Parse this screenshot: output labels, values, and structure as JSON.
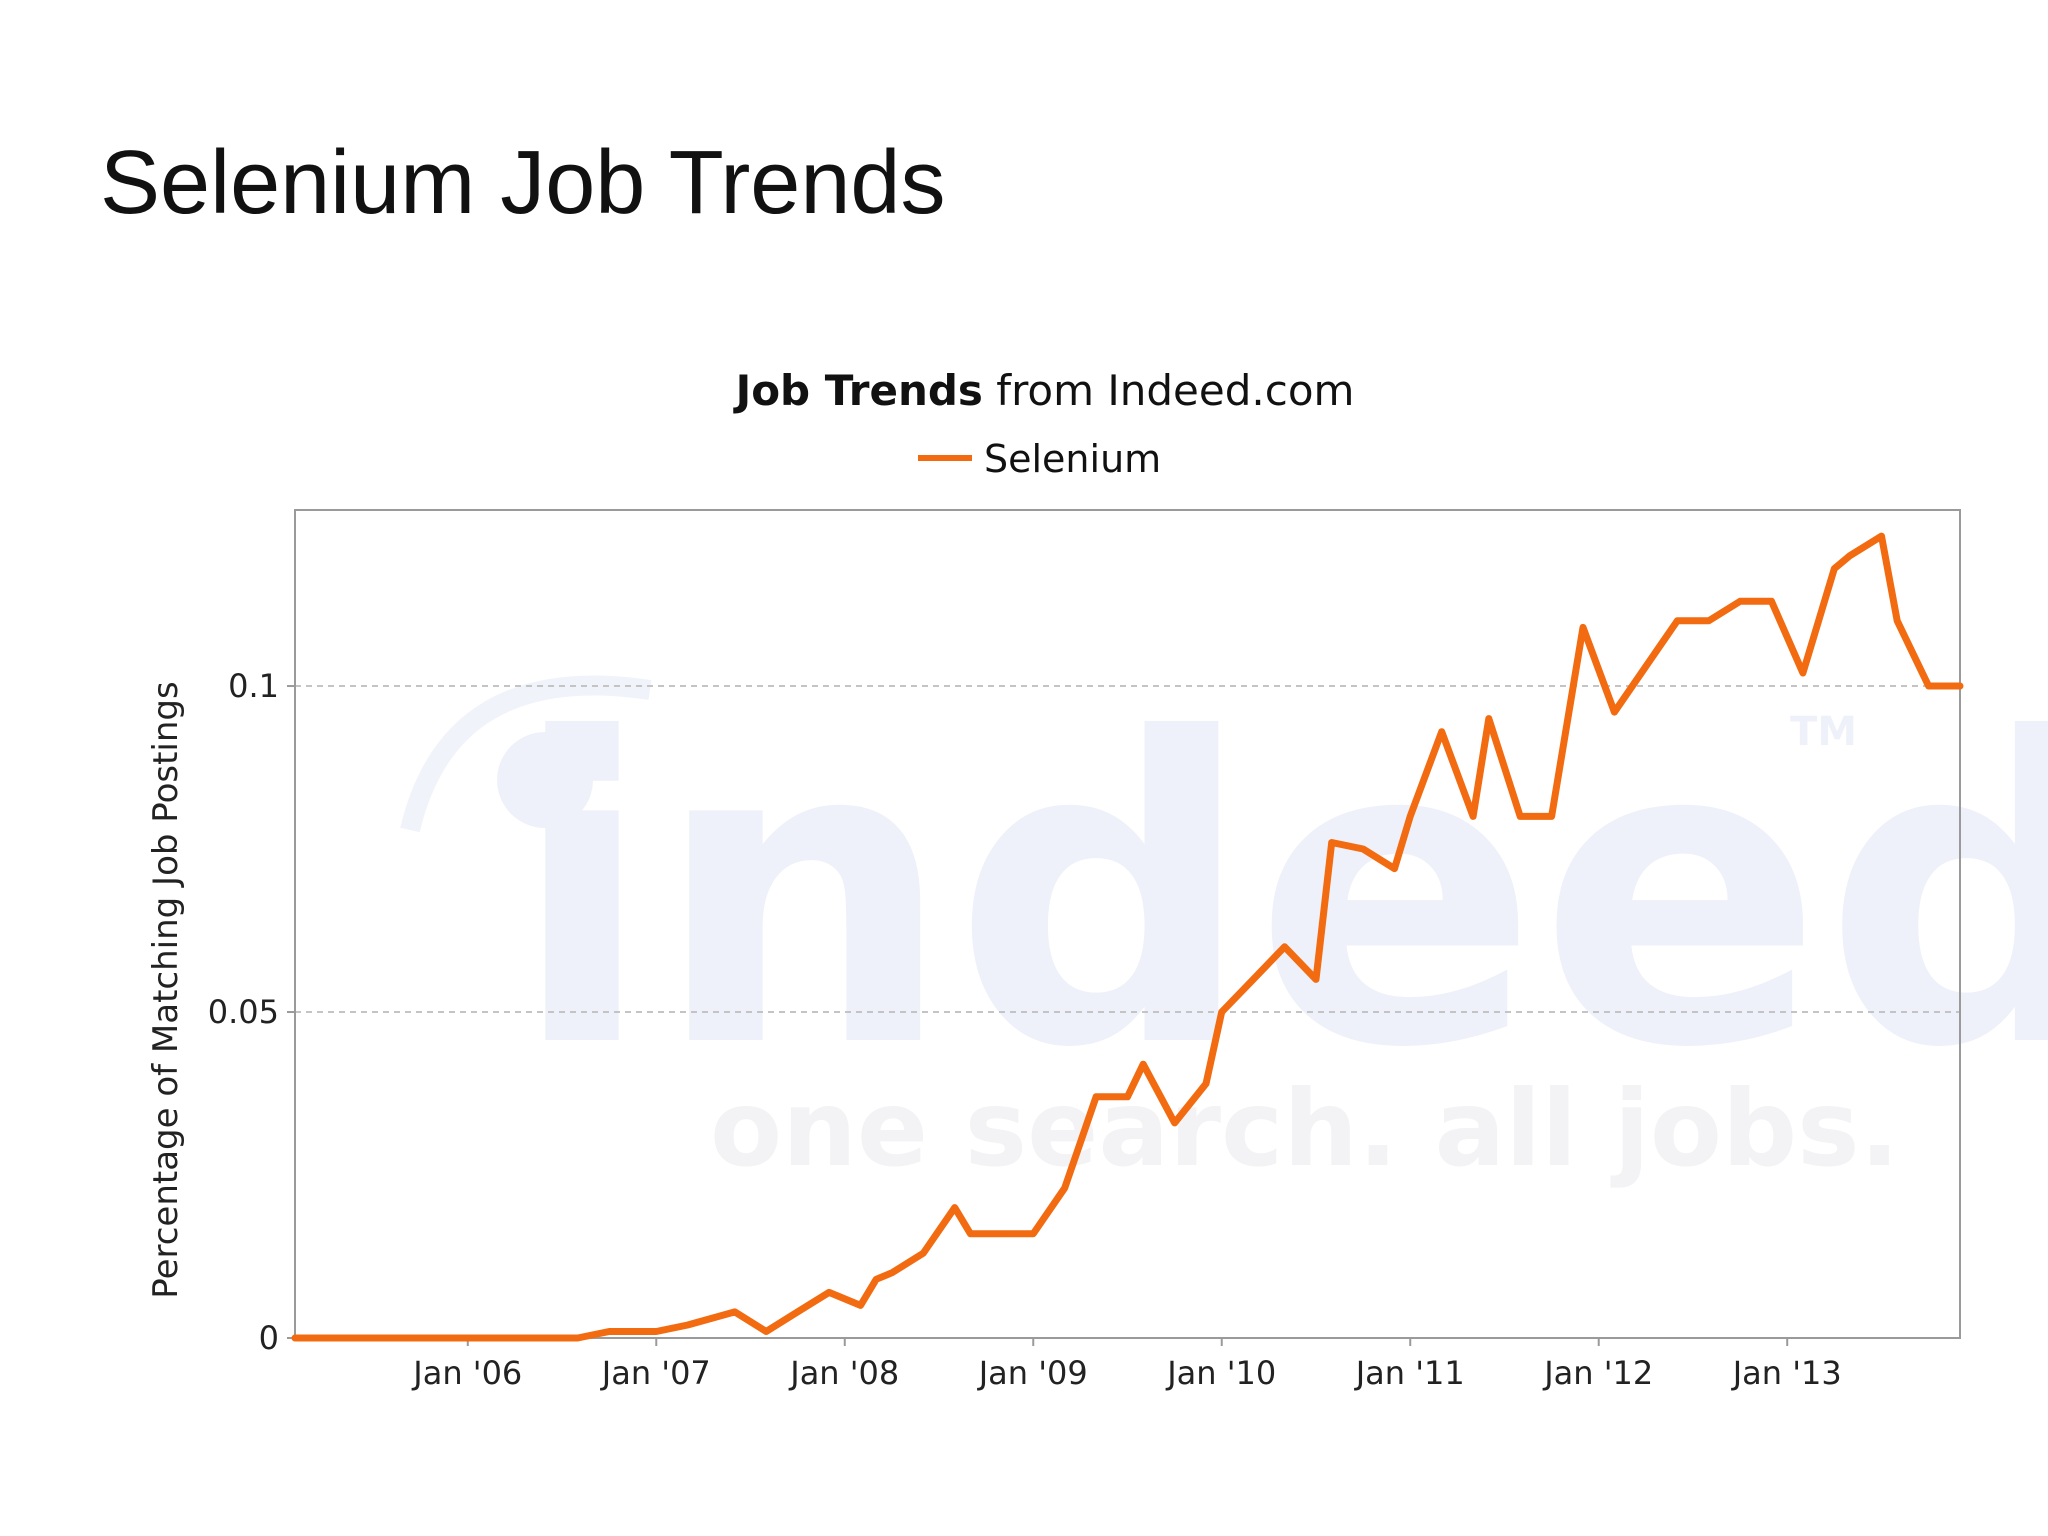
{
  "slide": {
    "title": "Selenium Job Trends"
  },
  "chart_data": {
    "type": "line",
    "title_bold": "Job Trends",
    "title_rest": " from Indeed.com",
    "ylabel": "Percentage of Matching Job Postings",
    "xlabel": "",
    "x_range": [
      "2005-02",
      "2013-12"
    ],
    "x_tick_labels": [
      "Jan '06",
      "Jan '07",
      "Jan '08",
      "Jan '09",
      "Jan '10",
      "Jan '11",
      "Jan '12",
      "Jan '13"
    ],
    "x_tick_dates": [
      "2006-01",
      "2007-01",
      "2008-01",
      "2009-01",
      "2010-01",
      "2011-01",
      "2012-01",
      "2013-01"
    ],
    "y_ticks": [
      0,
      0.05,
      0.1
    ],
    "y_tick_labels": [
      "0",
      "0.05",
      "0.1"
    ],
    "ylim": [
      0,
      0.127
    ],
    "grid": "horizontal dashed",
    "legend_position": "top-center",
    "watermark": {
      "logo": "indeed",
      "tagline": "one search. all jobs.",
      "tm": "TM"
    },
    "series": [
      {
        "name": "Selenium",
        "color": "#f26b11",
        "x": [
          "2005-02",
          "2006-01",
          "2006-08",
          "2006-10",
          "2007-01",
          "2007-03",
          "2007-06",
          "2007-08",
          "2007-10",
          "2007-12",
          "2008-02",
          "2008-03",
          "2008-04",
          "2008-06",
          "2008-08",
          "2008-09",
          "2008-11",
          "2009-01",
          "2009-03",
          "2009-05",
          "2009-07",
          "2009-08",
          "2009-10",
          "2009-12",
          "2010-01",
          "2010-03",
          "2010-05",
          "2010-07",
          "2010-08",
          "2010-10",
          "2010-12",
          "2011-01",
          "2011-03",
          "2011-05",
          "2011-06",
          "2011-08",
          "2011-10",
          "2011-12",
          "2012-02",
          "2012-04",
          "2012-06",
          "2012-08",
          "2012-10",
          "2012-12",
          "2013-02",
          "2013-04",
          "2013-05",
          "2013-07",
          "2013-08",
          "2013-10",
          "2013-12"
        ],
        "y": [
          0,
          0,
          0,
          0.001,
          0.001,
          0.002,
          0.004,
          0.001,
          0.004,
          0.007,
          0.005,
          0.009,
          0.01,
          0.013,
          0.02,
          0.016,
          0.016,
          0.016,
          0.023,
          0.037,
          0.037,
          0.042,
          0.033,
          0.039,
          0.05,
          0.055,
          0.06,
          0.055,
          0.076,
          0.075,
          0.072,
          0.08,
          0.093,
          0.08,
          0.095,
          0.08,
          0.08,
          0.109,
          0.096,
          0.103,
          0.11,
          0.11,
          0.113,
          0.113,
          0.102,
          0.118,
          0.12,
          0.123,
          0.11,
          0.1,
          0.1
        ]
      }
    ]
  }
}
